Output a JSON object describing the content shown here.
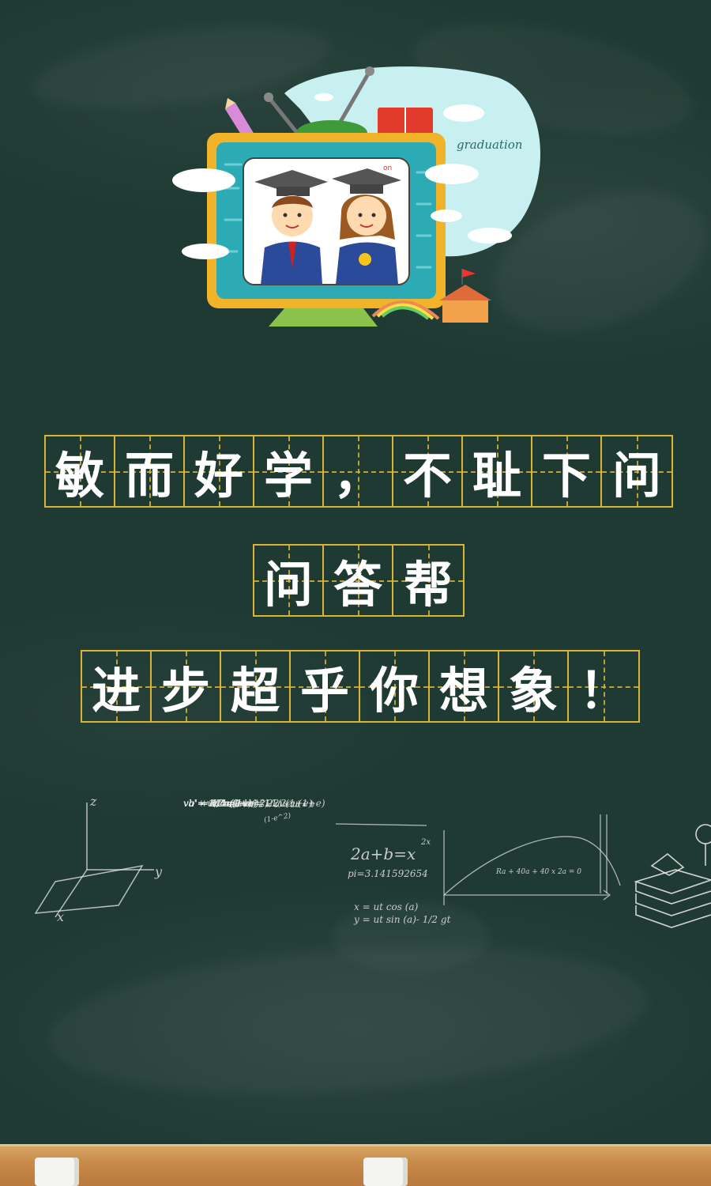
{
  "illustration": {
    "badge_text": "graduation",
    "screen_tag": "on"
  },
  "slogan": {
    "line1": [
      "敏",
      "而",
      "好",
      "学",
      "，",
      "不",
      "耻",
      "下",
      "问"
    ],
    "line2": [
      "问",
      "答",
      "帮"
    ],
    "line3": [
      "进",
      "步",
      "超",
      "乎",
      "你",
      "想",
      "象",
      "！"
    ]
  },
  "formulas": {
    "axis_z": "z",
    "axis_y": "y",
    "axis_x": "x",
    "block_lines": [
      "va + vb = u",
      "va",
      "va = 1/2u(1-e)",
      "vb = 1/2u(1+e)",
      "",
      "vb' + vc' = vb = 1/2u(1+e)",
      "vb' - vc' = -evb = -1/2eu(1+e)",
      "vb' = 1/4u(1-e^2)",
      "vc' = 1/4u(1+e)^2"
    ],
    "small_ra_1": "Ra + 40a + 40 x 2a = 0",
    "side_note": "(1-e^2)",
    "main_formula": "2a+b=x",
    "main_exp": "2x",
    "pi_line": "pi=3.141592654",
    "x_line": "x = ut cos (a)",
    "y_line": "y = ut sin (a)- 1/2 gt",
    "small_ra_2": "Ra + 40a + 40 x 2a = 0"
  },
  "colors": {
    "board": "#1f3a33",
    "grid_line": "#d9b436",
    "text": "#ffffff",
    "ledge": "#c78b4b"
  }
}
